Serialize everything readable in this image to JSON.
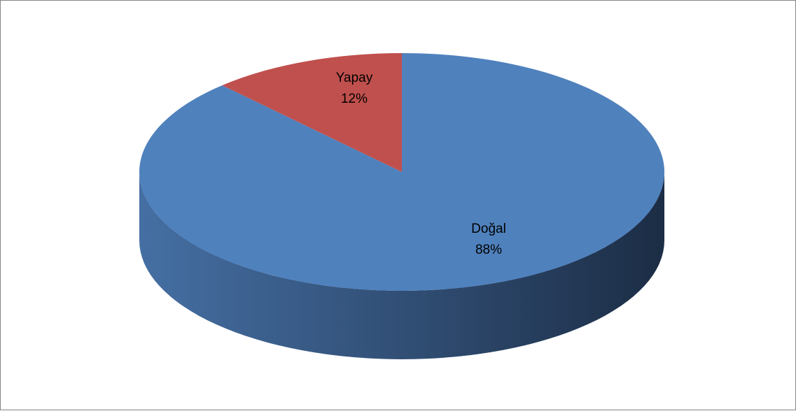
{
  "chart_data": {
    "type": "pie",
    "style": "3d",
    "title": "",
    "categories": [
      "Doğal",
      "Yapay"
    ],
    "values": [
      88,
      12
    ],
    "percent_labels": [
      "88%",
      "12%"
    ],
    "colors": [
      "#4F81BD",
      "#C0504D"
    ],
    "legend": "none",
    "data_labels": "inside"
  }
}
